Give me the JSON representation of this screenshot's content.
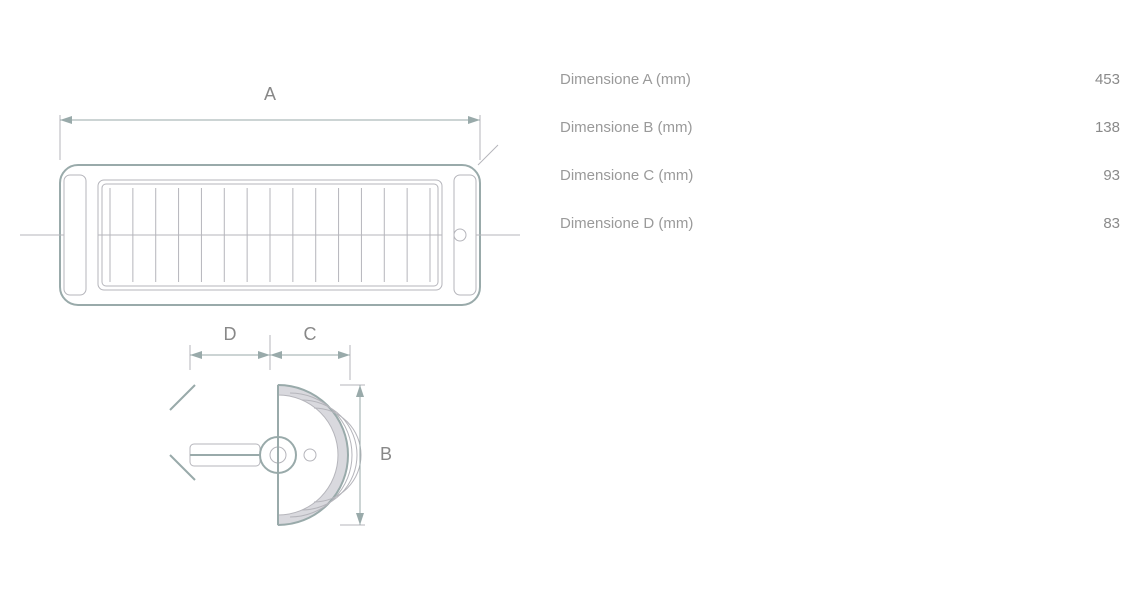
{
  "specs": [
    {
      "label": "Dimensione A (mm)",
      "value": "453"
    },
    {
      "label": "Dimensione B (mm)",
      "value": "138"
    },
    {
      "label": "Dimensione C (mm)",
      "value": "93"
    },
    {
      "label": "Dimensione D (mm)",
      "value": "83"
    }
  ],
  "diagram": {
    "labels": {
      "A": "A",
      "B": "B",
      "C": "C",
      "D": "D"
    },
    "colors": {
      "stroke": "#9aa0a6",
      "thin": "#b5b9c0",
      "fill": "#dcdde2",
      "text": "#888888",
      "background": "#ffffff"
    },
    "grill_bars": 15
  }
}
